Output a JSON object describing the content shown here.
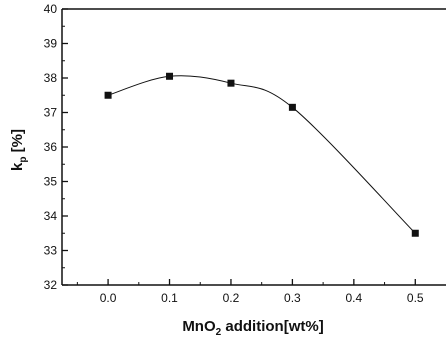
{
  "chart_data": {
    "type": "line",
    "xlabel": "MnO2 addition[wt%]",
    "xlabel_parts": {
      "main": "MnO",
      "sub": "2",
      "rest": " addition[wt%]"
    },
    "ylabel": "kp [%]",
    "ylabel_parts": {
      "main": "k",
      "sub": "p",
      "rest": " [%]"
    },
    "xlim": [
      -0.075,
      0.55
    ],
    "ylim": [
      32,
      40
    ],
    "x_ticks": [
      0.0,
      0.1,
      0.2,
      0.3,
      0.4,
      0.5
    ],
    "x_tick_labels": [
      "0.0",
      "0.1",
      "0.2",
      "0.3",
      "0.4",
      "0.5"
    ],
    "y_ticks": [
      32,
      33,
      34,
      35,
      36,
      37,
      38,
      39,
      40
    ],
    "y_tick_labels": [
      "32",
      "33",
      "34",
      "35",
      "36",
      "37",
      "38",
      "39",
      "40"
    ],
    "series": [
      {
        "marker": "square",
        "color": "#111111",
        "x": [
          0.0,
          0.1,
          0.2,
          0.3,
          0.5
        ],
        "y": [
          37.5,
          38.05,
          37.85,
          37.15,
          33.5
        ]
      }
    ],
    "grid": false
  }
}
